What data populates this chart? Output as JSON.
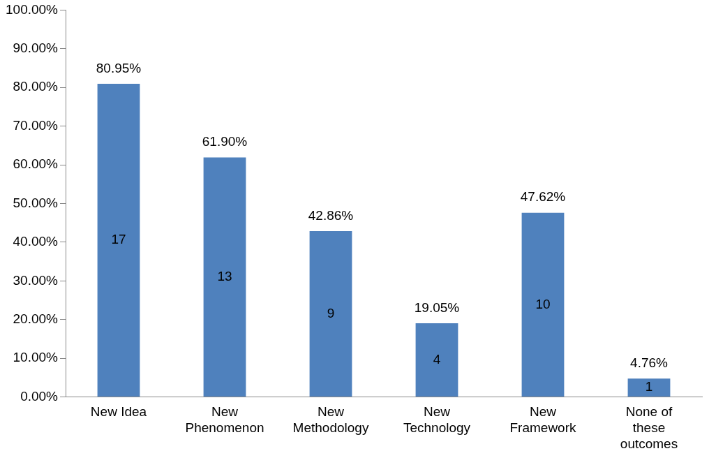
{
  "chart_data": {
    "type": "bar",
    "categories": [
      "New Idea",
      "New Phenomenon",
      "New Methodology",
      "New Technology",
      "New Framework",
      "None of these outcomes"
    ],
    "values": [
      80.95,
      61.9,
      42.86,
      19.05,
      47.62,
      4.76
    ],
    "value_labels": [
      "80.95%",
      "61.90%",
      "42.86%",
      "19.05%",
      "47.62%",
      "4.76%"
    ],
    "color": "#4f81bd",
    "ylim": [
      0,
      100
    ],
    "yticks": [
      {
        "value": 0,
        "label": "0.00%"
      },
      {
        "value": 10,
        "label": "10.00%"
      },
      {
        "value": 20,
        "label": "20.00%"
      },
      {
        "value": 30,
        "label": "30.00%"
      },
      {
        "value": 40,
        "label": "40.00%"
      },
      {
        "value": 50,
        "label": "50.00%"
      },
      {
        "value": 60,
        "label": "60.00%"
      },
      {
        "value": 70,
        "label": "70.00%"
      },
      {
        "value": 80,
        "label": "80.00%"
      },
      {
        "value": 90,
        "label": "90.00%"
      },
      {
        "value": 100,
        "label": "100.00%"
      }
    ],
    "annotations": [
      "17",
      "13",
      "9",
      "4",
      "10",
      "1"
    ],
    "grid": false,
    "legend": false
  }
}
